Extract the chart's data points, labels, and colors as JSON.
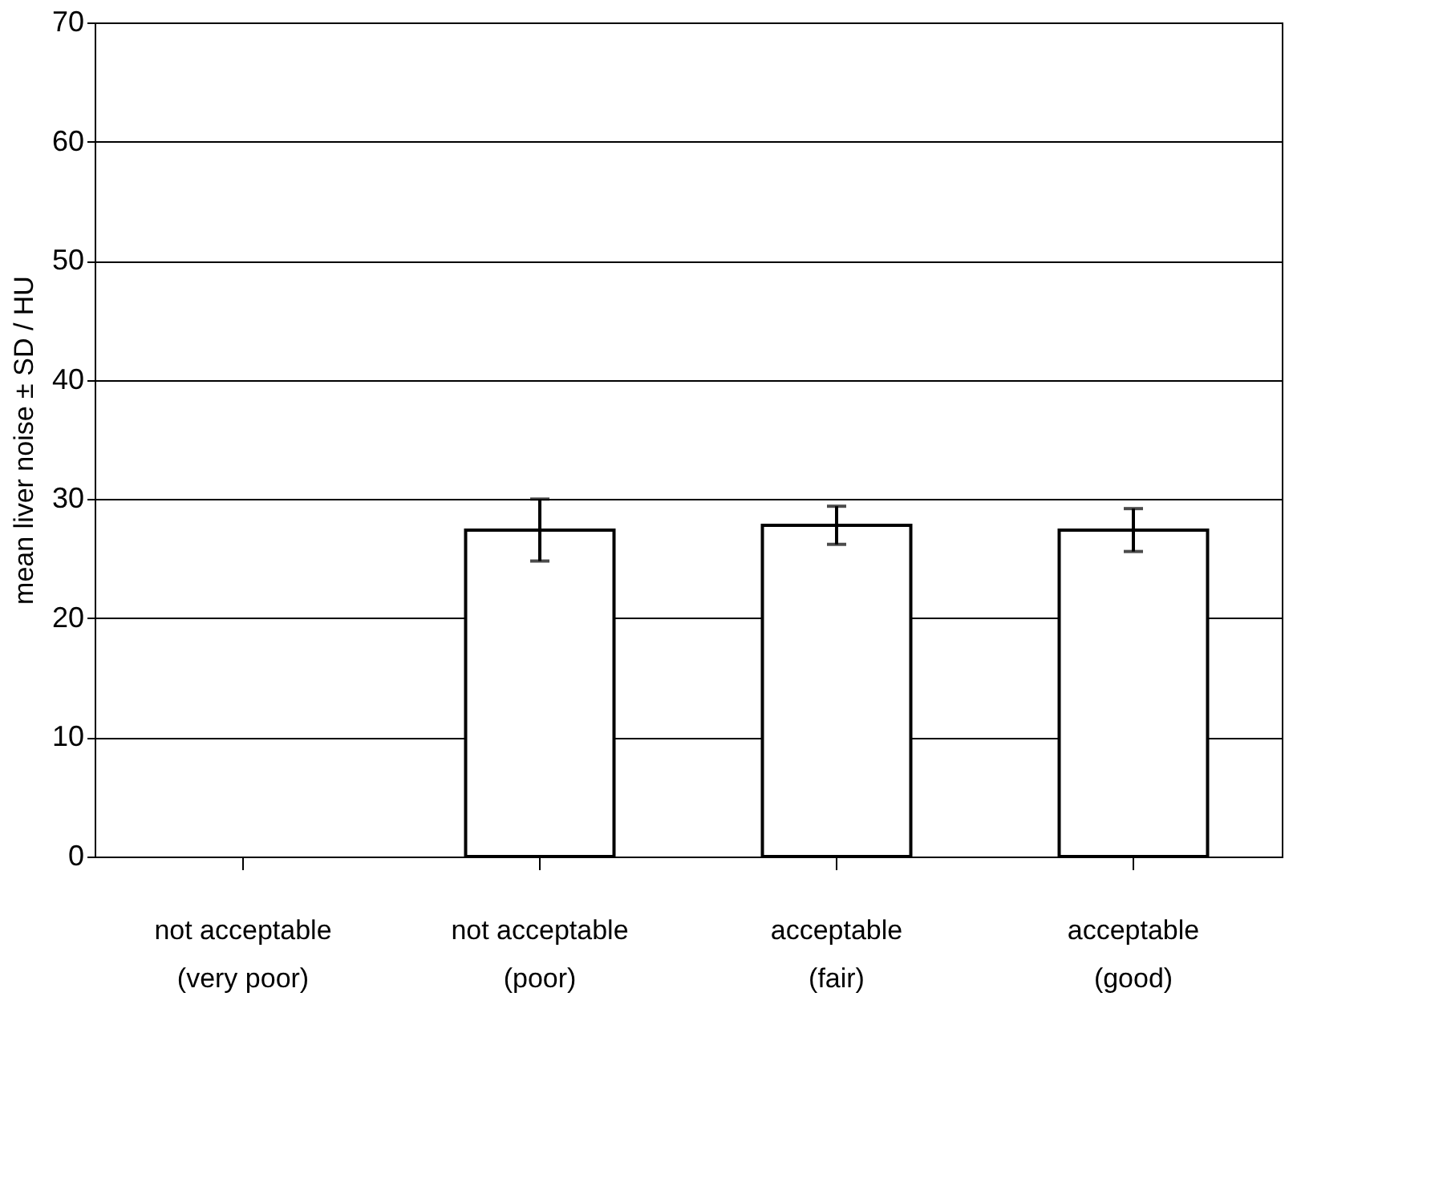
{
  "chart_data": {
    "type": "bar",
    "ylabel": "mean liver noise ± SD / HU",
    "categories": [
      "not acceptable\n(very poor)",
      "not acceptable\n(poor)",
      "acceptable\n(fair)",
      "acceptable\n(good)"
    ],
    "values": [
      null,
      27.4,
      27.8,
      27.4
    ],
    "errors": [
      null,
      2.6,
      1.6,
      1.8
    ],
    "color": "#ffffff",
    "ylim": [
      0,
      70
    ],
    "yticks": [
      0,
      10,
      20,
      30,
      40,
      50,
      60,
      70
    ],
    "grid": "y"
  }
}
